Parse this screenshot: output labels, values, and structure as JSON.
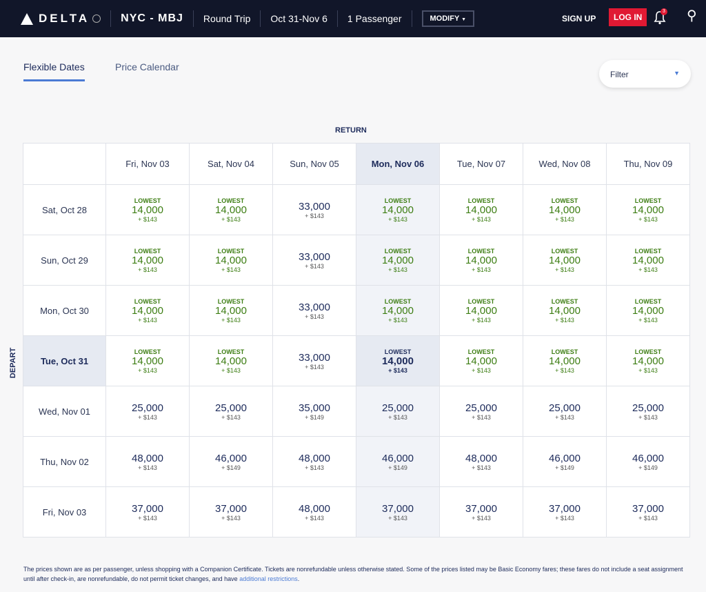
{
  "header": {
    "brand": "DELTA",
    "route": "NYC - MBJ",
    "trip_type": "Round Trip",
    "dates": "Oct 31-Nov 6",
    "passengers": "1 Passenger",
    "modify": "MODIFY",
    "sign_up": "SIGN UP",
    "log_in": "LOG IN",
    "notifications": "3"
  },
  "tabs": [
    {
      "label": "Flexible Dates",
      "active": true
    },
    {
      "label": "Price Calendar",
      "active": false
    }
  ],
  "filter": {
    "label": "Filter"
  },
  "grid": {
    "return_label": "RETURN",
    "depart_label": "DEPART",
    "lowest_label": "LOWEST",
    "return_dates": [
      "Fri, Nov 03",
      "Sat, Nov 04",
      "Sun, Nov 05",
      "Mon, Nov 06",
      "Tue, Nov 07",
      "Wed, Nov 08",
      "Thu, Nov 09"
    ],
    "selected_return": 3,
    "selected_depart": 3,
    "rows": [
      {
        "depart": "Sat, Oct 28",
        "cells": [
          {
            "lowest": true,
            "miles": "14,000",
            "fee": "+ $143"
          },
          {
            "lowest": true,
            "miles": "14,000",
            "fee": "+ $143"
          },
          {
            "lowest": false,
            "miles": "33,000",
            "fee": "+ $143"
          },
          {
            "lowest": true,
            "miles": "14,000",
            "fee": "+ $143"
          },
          {
            "lowest": true,
            "miles": "14,000",
            "fee": "+ $143"
          },
          {
            "lowest": true,
            "miles": "14,000",
            "fee": "+ $143"
          },
          {
            "lowest": true,
            "miles": "14,000",
            "fee": "+ $143"
          }
        ]
      },
      {
        "depart": "Sun, Oct 29",
        "cells": [
          {
            "lowest": true,
            "miles": "14,000",
            "fee": "+ $143"
          },
          {
            "lowest": true,
            "miles": "14,000",
            "fee": "+ $143"
          },
          {
            "lowest": false,
            "miles": "33,000",
            "fee": "+ $143"
          },
          {
            "lowest": true,
            "miles": "14,000",
            "fee": "+ $143"
          },
          {
            "lowest": true,
            "miles": "14,000",
            "fee": "+ $143"
          },
          {
            "lowest": true,
            "miles": "14,000",
            "fee": "+ $143"
          },
          {
            "lowest": true,
            "miles": "14,000",
            "fee": "+ $143"
          }
        ]
      },
      {
        "depart": "Mon, Oct 30",
        "cells": [
          {
            "lowest": true,
            "miles": "14,000",
            "fee": "+ $143"
          },
          {
            "lowest": true,
            "miles": "14,000",
            "fee": "+ $143"
          },
          {
            "lowest": false,
            "miles": "33,000",
            "fee": "+ $143"
          },
          {
            "lowest": true,
            "miles": "14,000",
            "fee": "+ $143"
          },
          {
            "lowest": true,
            "miles": "14,000",
            "fee": "+ $143"
          },
          {
            "lowest": true,
            "miles": "14,000",
            "fee": "+ $143"
          },
          {
            "lowest": true,
            "miles": "14,000",
            "fee": "+ $143"
          }
        ]
      },
      {
        "depart": "Tue, Oct 31",
        "cells": [
          {
            "lowest": true,
            "miles": "14,000",
            "fee": "+ $143"
          },
          {
            "lowest": true,
            "miles": "14,000",
            "fee": "+ $143"
          },
          {
            "lowest": false,
            "miles": "33,000",
            "fee": "+ $143"
          },
          {
            "lowest": true,
            "miles": "14,000",
            "fee": "+ $143"
          },
          {
            "lowest": true,
            "miles": "14,000",
            "fee": "+ $143"
          },
          {
            "lowest": true,
            "miles": "14,000",
            "fee": "+ $143"
          },
          {
            "lowest": true,
            "miles": "14,000",
            "fee": "+ $143"
          }
        ]
      },
      {
        "depart": "Wed, Nov 01",
        "cells": [
          {
            "lowest": false,
            "miles": "25,000",
            "fee": "+ $143"
          },
          {
            "lowest": false,
            "miles": "25,000",
            "fee": "+ $143"
          },
          {
            "lowest": false,
            "miles": "35,000",
            "fee": "+ $149"
          },
          {
            "lowest": false,
            "miles": "25,000",
            "fee": "+ $143"
          },
          {
            "lowest": false,
            "miles": "25,000",
            "fee": "+ $143"
          },
          {
            "lowest": false,
            "miles": "25,000",
            "fee": "+ $143"
          },
          {
            "lowest": false,
            "miles": "25,000",
            "fee": "+ $143"
          }
        ]
      },
      {
        "depart": "Thu, Nov 02",
        "cells": [
          {
            "lowest": false,
            "miles": "48,000",
            "fee": "+ $143"
          },
          {
            "lowest": false,
            "miles": "46,000",
            "fee": "+ $149"
          },
          {
            "lowest": false,
            "miles": "48,000",
            "fee": "+ $143"
          },
          {
            "lowest": false,
            "miles": "46,000",
            "fee": "+ $149"
          },
          {
            "lowest": false,
            "miles": "48,000",
            "fee": "+ $143"
          },
          {
            "lowest": false,
            "miles": "46,000",
            "fee": "+ $149"
          },
          {
            "lowest": false,
            "miles": "46,000",
            "fee": "+ $149"
          }
        ]
      },
      {
        "depart": "Fri, Nov 03",
        "cells": [
          {
            "lowest": false,
            "miles": "37,000",
            "fee": "+ $143"
          },
          {
            "lowest": false,
            "miles": "37,000",
            "fee": "+ $143"
          },
          {
            "lowest": false,
            "miles": "48,000",
            "fee": "+ $143"
          },
          {
            "lowest": false,
            "miles": "37,000",
            "fee": "+ $143"
          },
          {
            "lowest": false,
            "miles": "37,000",
            "fee": "+ $143"
          },
          {
            "lowest": false,
            "miles": "37,000",
            "fee": "+ $143"
          },
          {
            "lowest": false,
            "miles": "37,000",
            "fee": "+ $143"
          }
        ]
      }
    ]
  },
  "footer": {
    "text": "The prices shown are as per passenger, unless shopping with a Companion Certificate. Tickets are nonrefundable unless otherwise stated. Some of the prices listed may be Basic Economy fares; these fares do not include a seat assignment until after check-in, are nonrefundable, do not permit ticket changes, and have ",
    "link": "additional restrictions",
    "end": "."
  },
  "colors": {
    "nav": "#111629",
    "accent": "#4b7bd4",
    "login": "#e01933",
    "lowest": "#3c7d12"
  }
}
